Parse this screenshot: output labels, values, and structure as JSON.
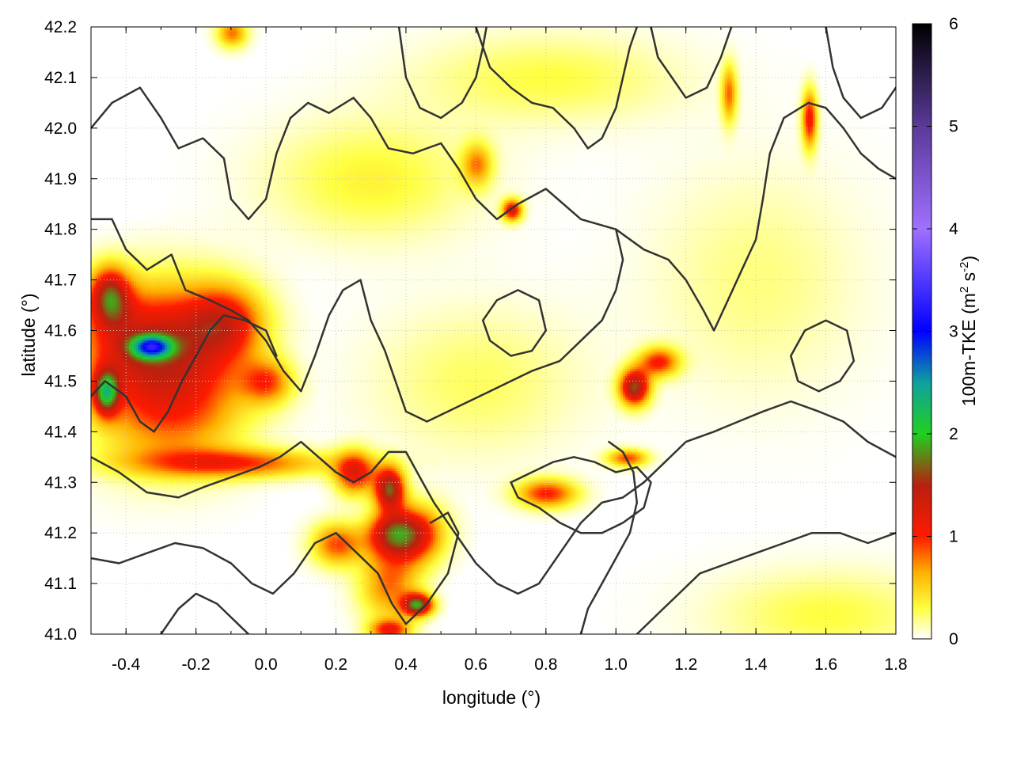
{
  "chart_data": {
    "type": "heatmap",
    "xlabel": "longitude (°)",
    "ylabel": "latitude (°)",
    "colorbar_label": "100m-TKE (m² s⁻²)",
    "colorbar_label_main": "100m-TKE (m",
    "colorbar_label_sup1": "2",
    "colorbar_label_mid": " s",
    "colorbar_label_sup2": "-2",
    "colorbar_label_end": ")",
    "xlim": [
      -0.5,
      1.8
    ],
    "ylim": [
      41.0,
      42.2
    ],
    "x_ticks": [
      -0.4,
      -0.2,
      0.0,
      0.2,
      0.4,
      0.6,
      0.8,
      1.0,
      1.2,
      1.4,
      1.6,
      1.8
    ],
    "x_tick_labels": [
      "-0.4",
      "-0.2",
      "0.0",
      "0.2",
      "0.4",
      "0.6",
      "0.8",
      "1.0",
      "1.2",
      "1.4",
      "1.6",
      "1.8"
    ],
    "y_ticks": [
      41.0,
      41.1,
      41.2,
      41.3,
      41.4,
      41.5,
      41.6,
      41.7,
      41.8,
      41.9,
      42.0,
      42.1,
      42.2
    ],
    "y_tick_labels": [
      "41.0",
      "41.1",
      "41.2",
      "41.3",
      "41.4",
      "41.5",
      "41.6",
      "41.7",
      "41.8",
      "41.9",
      "42.0",
      "42.1",
      "42.2"
    ],
    "colorbar_range": [
      0,
      6
    ],
    "colorbar_ticks": [
      0,
      1,
      2,
      3,
      4,
      5,
      6
    ],
    "colorbar_tick_labels": [
      "0",
      "1",
      "2",
      "3",
      "4",
      "5",
      "6"
    ],
    "colorscale": [
      {
        "value": 0.0,
        "color": "#ffffff"
      },
      {
        "value": 0.3,
        "color": "#ffff40"
      },
      {
        "value": 0.65,
        "color": "#ffb000"
      },
      {
        "value": 1.0,
        "color": "#ff1a00"
      },
      {
        "value": 1.5,
        "color": "#b82010"
      },
      {
        "value": 2.0,
        "color": "#20d020"
      },
      {
        "value": 2.5,
        "color": "#10a0a0"
      },
      {
        "value": 3.0,
        "color": "#0000ff"
      },
      {
        "value": 4.0,
        "color": "#a070ff"
      },
      {
        "value": 5.0,
        "color": "#5a3a9a"
      },
      {
        "value": 6.0,
        "color": "#000000"
      }
    ],
    "grid": true,
    "features": [
      {
        "lon": -0.38,
        "lat": 41.58,
        "tke": 1.1,
        "slon": 0.12,
        "slat": 0.08
      },
      {
        "lon": -0.33,
        "lat": 41.57,
        "tke": 1.8,
        "slon": 0.04,
        "slat": 0.015
      },
      {
        "lon": -0.45,
        "lat": 41.67,
        "tke": 1.3,
        "slon": 0.04,
        "slat": 0.04
      },
      {
        "lon": -0.46,
        "lat": 41.48,
        "tke": 1.6,
        "slon": 0.025,
        "slat": 0.03
      },
      {
        "lon": -0.2,
        "lat": 41.55,
        "tke": 0.7,
        "slon": 0.12,
        "slat": 0.1
      },
      {
        "lon": -0.12,
        "lat": 41.62,
        "tke": 0.9,
        "slon": 0.08,
        "slat": 0.05
      },
      {
        "lon": -0.3,
        "lat": 41.43,
        "tke": 0.6,
        "slon": 0.15,
        "slat": 0.08
      },
      {
        "lon": -0.1,
        "lat": 41.34,
        "tke": 0.9,
        "slon": 0.2,
        "slat": 0.02
      },
      {
        "lon": 0.25,
        "lat": 41.32,
        "tke": 1.1,
        "slon": 0.04,
        "slat": 0.03
      },
      {
        "lon": 0.35,
        "lat": 41.29,
        "tke": 1.6,
        "slon": 0.03,
        "slat": 0.03
      },
      {
        "lon": 0.42,
        "lat": 41.2,
        "tke": 1.2,
        "slon": 0.06,
        "slat": 0.04
      },
      {
        "lon": 0.35,
        "lat": 41.2,
        "tke": 1.0,
        "slon": 0.05,
        "slat": 0.03
      },
      {
        "lon": 0.2,
        "lat": 41.18,
        "tke": 0.9,
        "slon": 0.05,
        "slat": 0.03
      },
      {
        "lon": 0.43,
        "lat": 41.06,
        "tke": 1.7,
        "slon": 0.03,
        "slat": 0.015
      },
      {
        "lon": 0.35,
        "lat": 41.1,
        "tke": 0.8,
        "slon": 0.06,
        "slat": 0.05
      },
      {
        "lon": 0.35,
        "lat": 41.01,
        "tke": 1.0,
        "slon": 0.04,
        "slat": 0.015
      },
      {
        "lon": 1.05,
        "lat": 41.49,
        "tke": 1.6,
        "slon": 0.03,
        "slat": 0.025
      },
      {
        "lon": 1.12,
        "lat": 41.54,
        "tke": 1.0,
        "slon": 0.04,
        "slat": 0.02
      },
      {
        "lon": 0.7,
        "lat": 41.84,
        "tke": 1.2,
        "slon": 0.02,
        "slat": 0.015
      },
      {
        "lon": 0.8,
        "lat": 41.28,
        "tke": 1.0,
        "slon": 0.06,
        "slat": 0.02
      },
      {
        "lon": 1.03,
        "lat": 41.35,
        "tke": 0.9,
        "slon": 0.04,
        "slat": 0.012
      },
      {
        "lon": 1.55,
        "lat": 42.02,
        "tke": 1.1,
        "slon": 0.015,
        "slat": 0.04
      },
      {
        "lon": 1.32,
        "lat": 42.07,
        "tke": 0.8,
        "slon": 0.015,
        "slat": 0.04
      },
      {
        "lon": -0.1,
        "lat": 42.19,
        "tke": 0.8,
        "slon": 0.03,
        "slat": 0.02
      },
      {
        "lon": 0.6,
        "lat": 41.93,
        "tke": 0.7,
        "slon": 0.03,
        "slat": 0.03
      },
      {
        "lon": 0.0,
        "lat": 41.5,
        "tke": 0.8,
        "slon": 0.05,
        "slat": 0.03
      },
      {
        "lon": 1.6,
        "lat": 41.04,
        "tke": 0.3,
        "slon": 0.22,
        "slat": 0.06
      },
      {
        "lon": 0.3,
        "lat": 41.9,
        "tke": 0.35,
        "slon": 0.2,
        "slat": 0.08
      },
      {
        "lon": 0.8,
        "lat": 42.1,
        "tke": 0.3,
        "slon": 0.25,
        "slat": 0.06
      },
      {
        "lon": 0.6,
        "lat": 41.5,
        "tke": 0.25,
        "slon": 0.2,
        "slat": 0.1
      },
      {
        "lon": 1.4,
        "lat": 41.7,
        "tke": 0.2,
        "slon": 0.2,
        "slat": 0.15
      }
    ],
    "contours": [
      [
        [
          -0.5,
          42.0
        ],
        [
          -0.44,
          42.05
        ],
        [
          -0.36,
          42.08
        ],
        [
          -0.3,
          42.02
        ],
        [
          -0.25,
          41.96
        ],
        [
          -0.18,
          41.98
        ],
        [
          -0.12,
          41.94
        ],
        [
          -0.1,
          41.86
        ],
        [
          -0.05,
          41.82
        ],
        [
          0.0,
          41.86
        ],
        [
          0.03,
          41.95
        ],
        [
          0.07,
          42.02
        ],
        [
          0.12,
          42.05
        ],
        [
          0.18,
          42.03
        ],
        [
          0.25,
          42.06
        ],
        [
          0.3,
          42.02
        ],
        [
          0.35,
          41.96
        ],
        [
          0.42,
          41.95
        ],
        [
          0.5,
          41.97
        ],
        [
          0.55,
          41.92
        ],
        [
          0.6,
          41.86
        ],
        [
          0.66,
          41.82
        ],
        [
          0.72,
          41.85
        ],
        [
          0.8,
          41.88
        ],
        [
          0.9,
          41.82
        ],
        [
          1.0,
          41.8
        ],
        [
          1.08,
          41.76
        ],
        [
          1.15,
          41.74
        ],
        [
          1.2,
          41.7
        ],
        [
          1.25,
          41.64
        ],
        [
          1.28,
          41.6
        ],
        [
          1.32,
          41.66
        ],
        [
          1.36,
          41.72
        ],
        [
          1.4,
          41.78
        ],
        [
          1.42,
          41.86
        ],
        [
          1.44,
          41.95
        ],
        [
          1.48,
          42.02
        ],
        [
          1.55,
          42.05
        ],
        [
          1.6,
          42.04
        ],
        [
          1.65,
          42.0
        ],
        [
          1.7,
          41.95
        ],
        [
          1.75,
          41.92
        ],
        [
          1.8,
          41.9
        ]
      ],
      [
        [
          -0.5,
          41.82
        ],
        [
          -0.44,
          41.82
        ],
        [
          -0.4,
          41.76
        ],
        [
          -0.34,
          41.72
        ],
        [
          -0.27,
          41.75
        ],
        [
          -0.23,
          41.68
        ],
        [
          -0.16,
          41.66
        ],
        [
          -0.1,
          41.64
        ],
        [
          -0.05,
          41.62
        ],
        [
          0.0,
          41.58
        ],
        [
          0.05,
          41.52
        ],
        [
          0.1,
          41.48
        ],
        [
          0.14,
          41.55
        ],
        [
          0.18,
          41.63
        ],
        [
          0.22,
          41.68
        ],
        [
          0.27,
          41.7
        ],
        [
          0.3,
          41.62
        ],
        [
          0.34,
          41.56
        ],
        [
          0.37,
          41.5
        ],
        [
          0.4,
          41.44
        ],
        [
          0.46,
          41.42
        ],
        [
          0.52,
          41.44
        ],
        [
          0.58,
          41.46
        ],
        [
          0.64,
          41.48
        ],
        [
          0.7,
          41.5
        ],
        [
          0.76,
          41.52
        ],
        [
          0.84,
          41.54
        ],
        [
          0.9,
          41.58
        ],
        [
          0.96,
          41.62
        ],
        [
          1.0,
          41.68
        ],
        [
          1.02,
          41.74
        ],
        [
          1.0,
          41.8
        ]
      ],
      [
        [
          -0.5,
          41.35
        ],
        [
          -0.42,
          41.32
        ],
        [
          -0.34,
          41.28
        ],
        [
          -0.25,
          41.27
        ],
        [
          -0.18,
          41.29
        ],
        [
          -0.1,
          41.31
        ],
        [
          -0.02,
          41.33
        ],
        [
          0.04,
          41.35
        ],
        [
          0.1,
          41.38
        ],
        [
          0.15,
          41.35
        ],
        [
          0.2,
          41.32
        ],
        [
          0.25,
          41.3
        ],
        [
          0.3,
          41.32
        ],
        [
          0.35,
          41.36
        ],
        [
          0.4,
          41.36
        ],
        [
          0.44,
          41.31
        ],
        [
          0.48,
          41.26
        ],
        [
          0.52,
          41.22
        ],
        [
          0.56,
          41.18
        ],
        [
          0.6,
          41.14
        ],
        [
          0.66,
          41.1
        ],
        [
          0.72,
          41.08
        ],
        [
          0.78,
          41.1
        ],
        [
          0.84,
          41.16
        ],
        [
          0.9,
          41.22
        ],
        [
          0.96,
          41.26
        ],
        [
          1.02,
          41.27
        ],
        [
          1.08,
          41.3
        ],
        [
          1.14,
          41.34
        ],
        [
          1.2,
          41.38
        ],
        [
          1.28,
          41.4
        ],
        [
          1.35,
          41.42
        ],
        [
          1.42,
          41.44
        ],
        [
          1.5,
          41.46
        ],
        [
          1.58,
          41.44
        ],
        [
          1.65,
          41.42
        ],
        [
          1.72,
          41.38
        ],
        [
          1.8,
          41.35
        ]
      ],
      [
        [
          -0.5,
          41.15
        ],
        [
          -0.42,
          41.14
        ],
        [
          -0.34,
          41.16
        ],
        [
          -0.26,
          41.18
        ],
        [
          -0.18,
          41.17
        ],
        [
          -0.1,
          41.14
        ],
        [
          -0.04,
          41.1
        ],
        [
          0.02,
          41.08
        ],
        [
          0.08,
          41.12
        ],
        [
          0.14,
          41.18
        ],
        [
          0.2,
          41.2
        ],
        [
          0.26,
          41.16
        ],
        [
          0.32,
          41.12
        ],
        [
          0.36,
          41.06
        ],
        [
          0.4,
          41.02
        ],
        [
          0.46,
          41.06
        ],
        [
          0.52,
          41.12
        ],
        [
          0.55,
          41.2
        ],
        [
          0.52,
          41.24
        ],
        [
          0.47,
          41.22
        ]
      ],
      [
        [
          -0.5,
          41.47
        ],
        [
          -0.46,
          41.5
        ],
        [
          -0.4,
          41.47
        ],
        [
          -0.36,
          41.42
        ],
        [
          -0.32,
          41.4
        ],
        [
          -0.28,
          41.44
        ],
        [
          -0.24,
          41.5
        ],
        [
          -0.2,
          41.55
        ],
        [
          -0.16,
          41.6
        ],
        [
          -0.12,
          41.63
        ],
        [
          -0.06,
          41.62
        ],
        [
          0.0,
          41.6
        ],
        [
          0.03,
          41.55
        ]
      ],
      [
        [
          0.7,
          41.3
        ],
        [
          0.76,
          41.32
        ],
        [
          0.82,
          41.34
        ],
        [
          0.88,
          41.35
        ],
        [
          0.94,
          41.34
        ],
        [
          1.0,
          41.32
        ],
        [
          1.06,
          41.33
        ],
        [
          1.1,
          41.3
        ],
        [
          1.08,
          41.25
        ],
        [
          1.02,
          41.22
        ],
        [
          0.96,
          41.2
        ],
        [
          0.9,
          41.2
        ],
        [
          0.84,
          41.22
        ],
        [
          0.78,
          41.25
        ],
        [
          0.72,
          41.27
        ],
        [
          0.7,
          41.3
        ]
      ],
      [
        [
          1.8,
          41.2
        ],
        [
          1.72,
          41.18
        ],
        [
          1.64,
          41.2
        ],
        [
          1.56,
          41.2
        ],
        [
          1.48,
          41.18
        ],
        [
          1.4,
          41.16
        ],
        [
          1.32,
          41.14
        ],
        [
          1.24,
          41.12
        ],
        [
          1.18,
          41.08
        ],
        [
          1.12,
          41.04
        ],
        [
          1.06,
          41.0
        ]
      ],
      [
        [
          0.9,
          41.0
        ],
        [
          0.92,
          41.05
        ],
        [
          0.96,
          41.1
        ],
        [
          1.0,
          41.15
        ],
        [
          1.04,
          41.2
        ],
        [
          1.06,
          41.26
        ],
        [
          1.05,
          41.32
        ],
        [
          1.02,
          41.36
        ],
        [
          0.98,
          41.38
        ]
      ],
      [
        [
          0.6,
          42.2
        ],
        [
          0.64,
          42.12
        ],
        [
          0.7,
          42.08
        ],
        [
          0.76,
          42.05
        ],
        [
          0.82,
          42.04
        ],
        [
          0.88,
          42.0
        ],
        [
          0.92,
          41.96
        ],
        [
          0.96,
          41.98
        ],
        [
          1.0,
          42.04
        ],
        [
          1.02,
          42.1
        ],
        [
          1.04,
          42.16
        ],
        [
          1.06,
          42.2
        ]
      ],
      [
        [
          0.38,
          42.2
        ],
        [
          0.4,
          42.1
        ],
        [
          0.44,
          42.04
        ],
        [
          0.5,
          42.02
        ],
        [
          0.56,
          42.05
        ],
        [
          0.6,
          42.1
        ],
        [
          0.62,
          42.16
        ],
        [
          0.63,
          42.2
        ]
      ],
      [
        [
          1.1,
          42.2
        ],
        [
          1.12,
          42.14
        ],
        [
          1.16,
          42.1
        ],
        [
          1.2,
          42.06
        ],
        [
          1.26,
          42.08
        ],
        [
          1.3,
          42.14
        ],
        [
          1.33,
          42.2
        ]
      ],
      [
        [
          1.6,
          42.2
        ],
        [
          1.62,
          42.12
        ],
        [
          1.65,
          42.06
        ],
        [
          1.7,
          42.02
        ],
        [
          1.76,
          42.04
        ],
        [
          1.8,
          42.08
        ]
      ],
      [
        [
          -0.3,
          41.0
        ],
        [
          -0.25,
          41.05
        ],
        [
          -0.2,
          41.08
        ],
        [
          -0.14,
          41.06
        ],
        [
          -0.08,
          41.02
        ],
        [
          -0.05,
          41.0
        ]
      ],
      [
        [
          0.62,
          41.62
        ],
        [
          0.66,
          41.66
        ],
        [
          0.72,
          41.68
        ],
        [
          0.78,
          41.66
        ],
        [
          0.8,
          41.6
        ],
        [
          0.76,
          41.56
        ],
        [
          0.7,
          41.55
        ],
        [
          0.64,
          41.58
        ],
        [
          0.62,
          41.62
        ]
      ],
      [
        [
          1.5,
          41.55
        ],
        [
          1.54,
          41.6
        ],
        [
          1.6,
          41.62
        ],
        [
          1.66,
          41.6
        ],
        [
          1.68,
          41.54
        ],
        [
          1.64,
          41.5
        ],
        [
          1.58,
          41.48
        ],
        [
          1.52,
          41.5
        ],
        [
          1.5,
          41.55
        ]
      ]
    ]
  }
}
